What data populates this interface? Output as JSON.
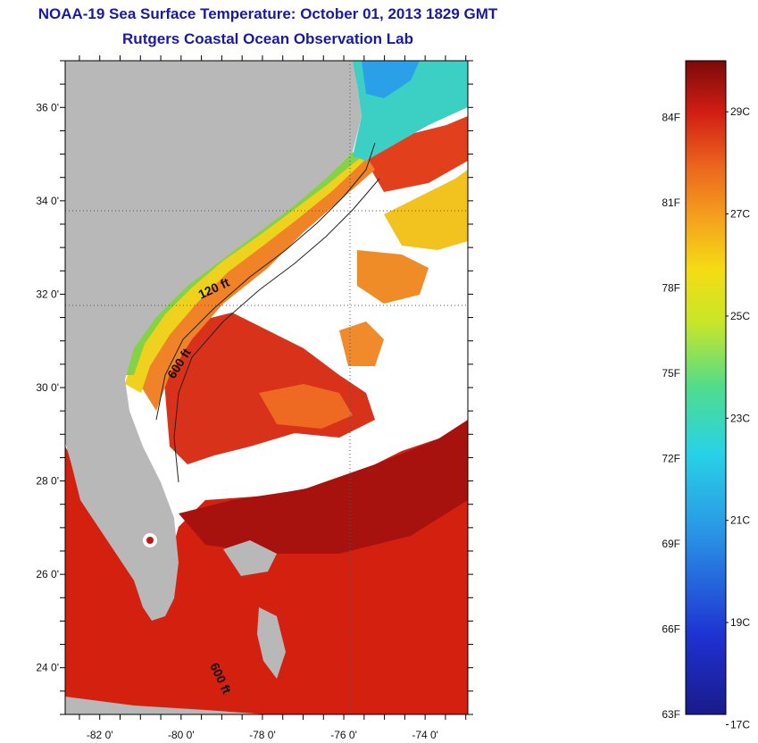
{
  "header": {
    "title": "NOAA-19 Sea Surface Temperature:  October 01, 2013 1829 GMT",
    "subtitle": "Rutgers Coastal Ocean Observation Lab"
  },
  "map": {
    "lat_ticks": [
      {
        "deg": 36,
        "label": "36 0'"
      },
      {
        "deg": 34,
        "label": "34 0'"
      },
      {
        "deg": 32,
        "label": "32 0'"
      },
      {
        "deg": 30,
        "label": "30 0'"
      },
      {
        "deg": 28,
        "label": "28 0'"
      },
      {
        "deg": 26,
        "label": "26 0'"
      },
      {
        "deg": 24,
        "label": "24 0'"
      }
    ],
    "lon_ticks": [
      {
        "deg": -82,
        "label": "-82 0'"
      },
      {
        "deg": -80,
        "label": "-80 0'"
      },
      {
        "deg": -78,
        "label": "-78 0'"
      },
      {
        "deg": -76,
        "label": "-76 0'"
      },
      {
        "deg": -74,
        "label": "-74 0'"
      }
    ],
    "depth_labels": [
      "120 ft",
      "600 ft",
      "600 ft"
    ],
    "colors": {
      "land": "#b8b8b8",
      "cloud": "#ffffff",
      "warm": "#d21e12",
      "hot": "#a50f0f",
      "orange": "#f07828",
      "yellow": "#f0c81e",
      "green": "#78d250",
      "cyan": "#3cd2c8"
    }
  },
  "colorbar": {
    "fahrenheit": [
      "84F",
      "81F",
      "78F",
      "75F",
      "72F",
      "69F",
      "66F",
      "63F"
    ],
    "celsius": [
      "29C",
      "27C",
      "25C",
      "23C",
      "21C",
      "19C",
      "17C"
    ],
    "range_f": [
      63,
      86
    ],
    "range_c": [
      17.2,
      30
    ]
  }
}
